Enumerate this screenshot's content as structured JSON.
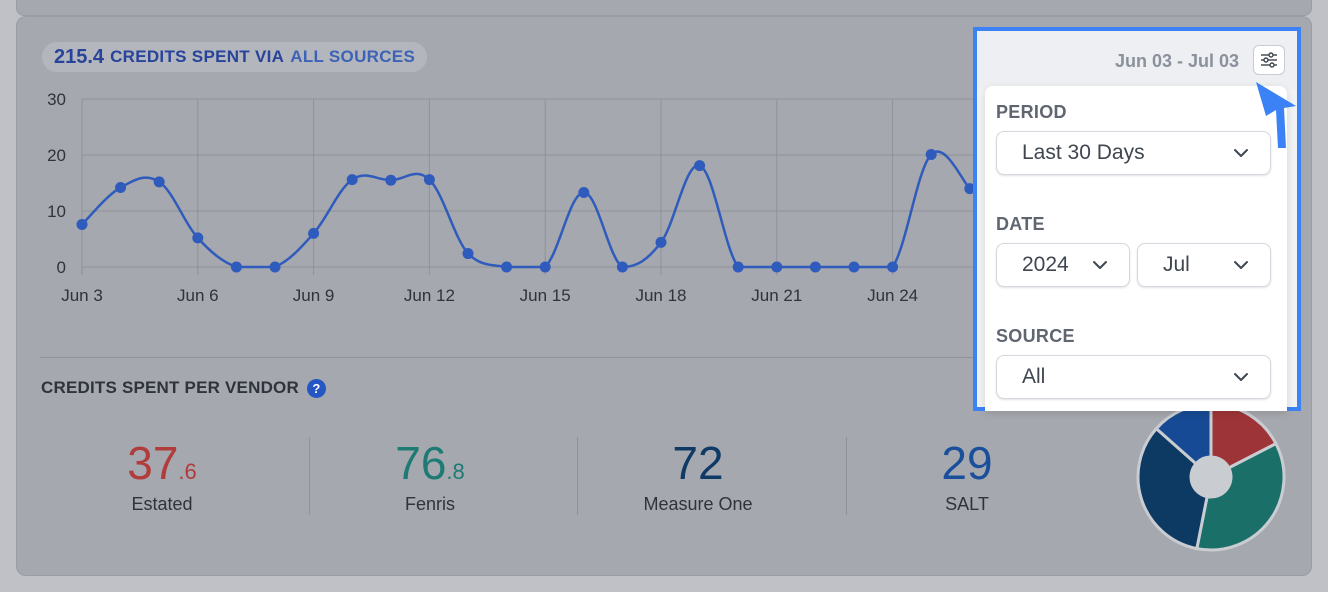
{
  "summary": {
    "amount": "215.4",
    "text": "CREDITS SPENT VIA",
    "source": "ALL SOURCES"
  },
  "chart_data": {
    "type": "line",
    "x": [
      "Jun 3",
      "Jun 4",
      "Jun 5",
      "Jun 6",
      "Jun 7",
      "Jun 8",
      "Jun 9",
      "Jun 10",
      "Jun 11",
      "Jun 12",
      "Jun 13",
      "Jun 14",
      "Jun 15",
      "Jun 16",
      "Jun 17",
      "Jun 18",
      "Jun 19",
      "Jun 20",
      "Jun 21",
      "Jun 22",
      "Jun 23",
      "Jun 24",
      "Jun 25",
      "Jun 26"
    ],
    "values": [
      7.6,
      14.2,
      15.2,
      5.2,
      0,
      0,
      6,
      15.6,
      15.5,
      15.6,
      2.4,
      0,
      0,
      13.3,
      0,
      4.4,
      18.1,
      0,
      0,
      0,
      0,
      0,
      20.1,
      14
    ],
    "xticks": [
      "Jun 3",
      "Jun 6",
      "Jun 9",
      "Jun 12",
      "Jun 15",
      "Jun 18",
      "Jun 21",
      "Jun 24"
    ],
    "ylim": [
      0,
      30
    ],
    "yticks": [
      "0",
      "10",
      "20",
      "30"
    ],
    "grid": true,
    "color": "#2f5bbd"
  },
  "vendors": {
    "title": "CREDITS SPENT PER VENDOR",
    "help": "?",
    "items": [
      {
        "int": "37",
        "dec": ".6",
        "name": "Estated",
        "color": "#b23b3b"
      },
      {
        "int": "76",
        "dec": ".8",
        "name": "Fenris",
        "color": "#1d7b74"
      },
      {
        "int": "72",
        "dec": "",
        "name": "Measure One",
        "color": "#0f3a66"
      },
      {
        "int": "29",
        "dec": "",
        "name": "SALT",
        "color": "#1a4f9c"
      }
    ]
  },
  "donut": {
    "values": [
      37.6,
      76.8,
      72,
      29
    ],
    "colors": [
      "#9d3437",
      "#1a6f68",
      "#0d3a63",
      "#174a94"
    ]
  },
  "filters": {
    "range": "Jun 03 - Jul 03",
    "period_label": "PERIOD",
    "period_value": "Last 30 Days",
    "date_label": "DATE",
    "year_value": "2024",
    "month_value": "Jul",
    "source_label": "SOURCE",
    "source_value": "All"
  },
  "icons": {
    "filter": "sliders-icon",
    "chevron": "chevron-down-icon",
    "pointer": "arrow-pointer-icon"
  }
}
